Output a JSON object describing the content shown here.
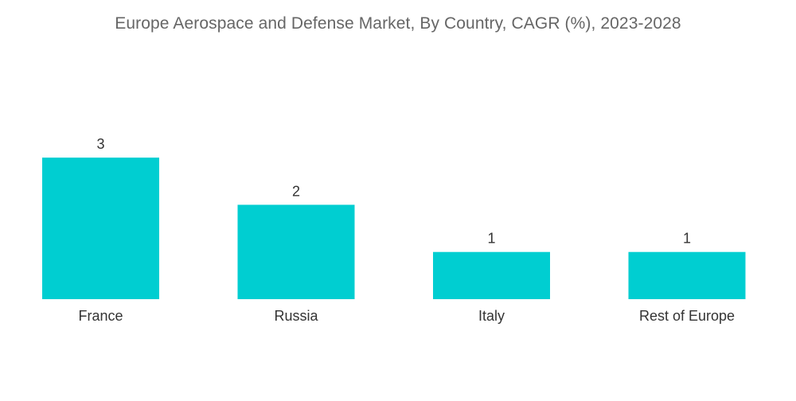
{
  "chart_data": {
    "type": "bar",
    "title": "Europe Aerospace and Defense Market, By Country, CAGR (%), 2023-2028",
    "categories": [
      "France",
      "Russia",
      "Italy",
      "Rest of Europe"
    ],
    "values": [
      3,
      2,
      1,
      1
    ],
    "data_labels": [
      "3",
      "2",
      "1",
      "1"
    ],
    "xlabel": "",
    "ylabel": "",
    "ylim": [
      0,
      3
    ],
    "grid": false,
    "legend": "none",
    "bar_color": "#00CED1"
  }
}
